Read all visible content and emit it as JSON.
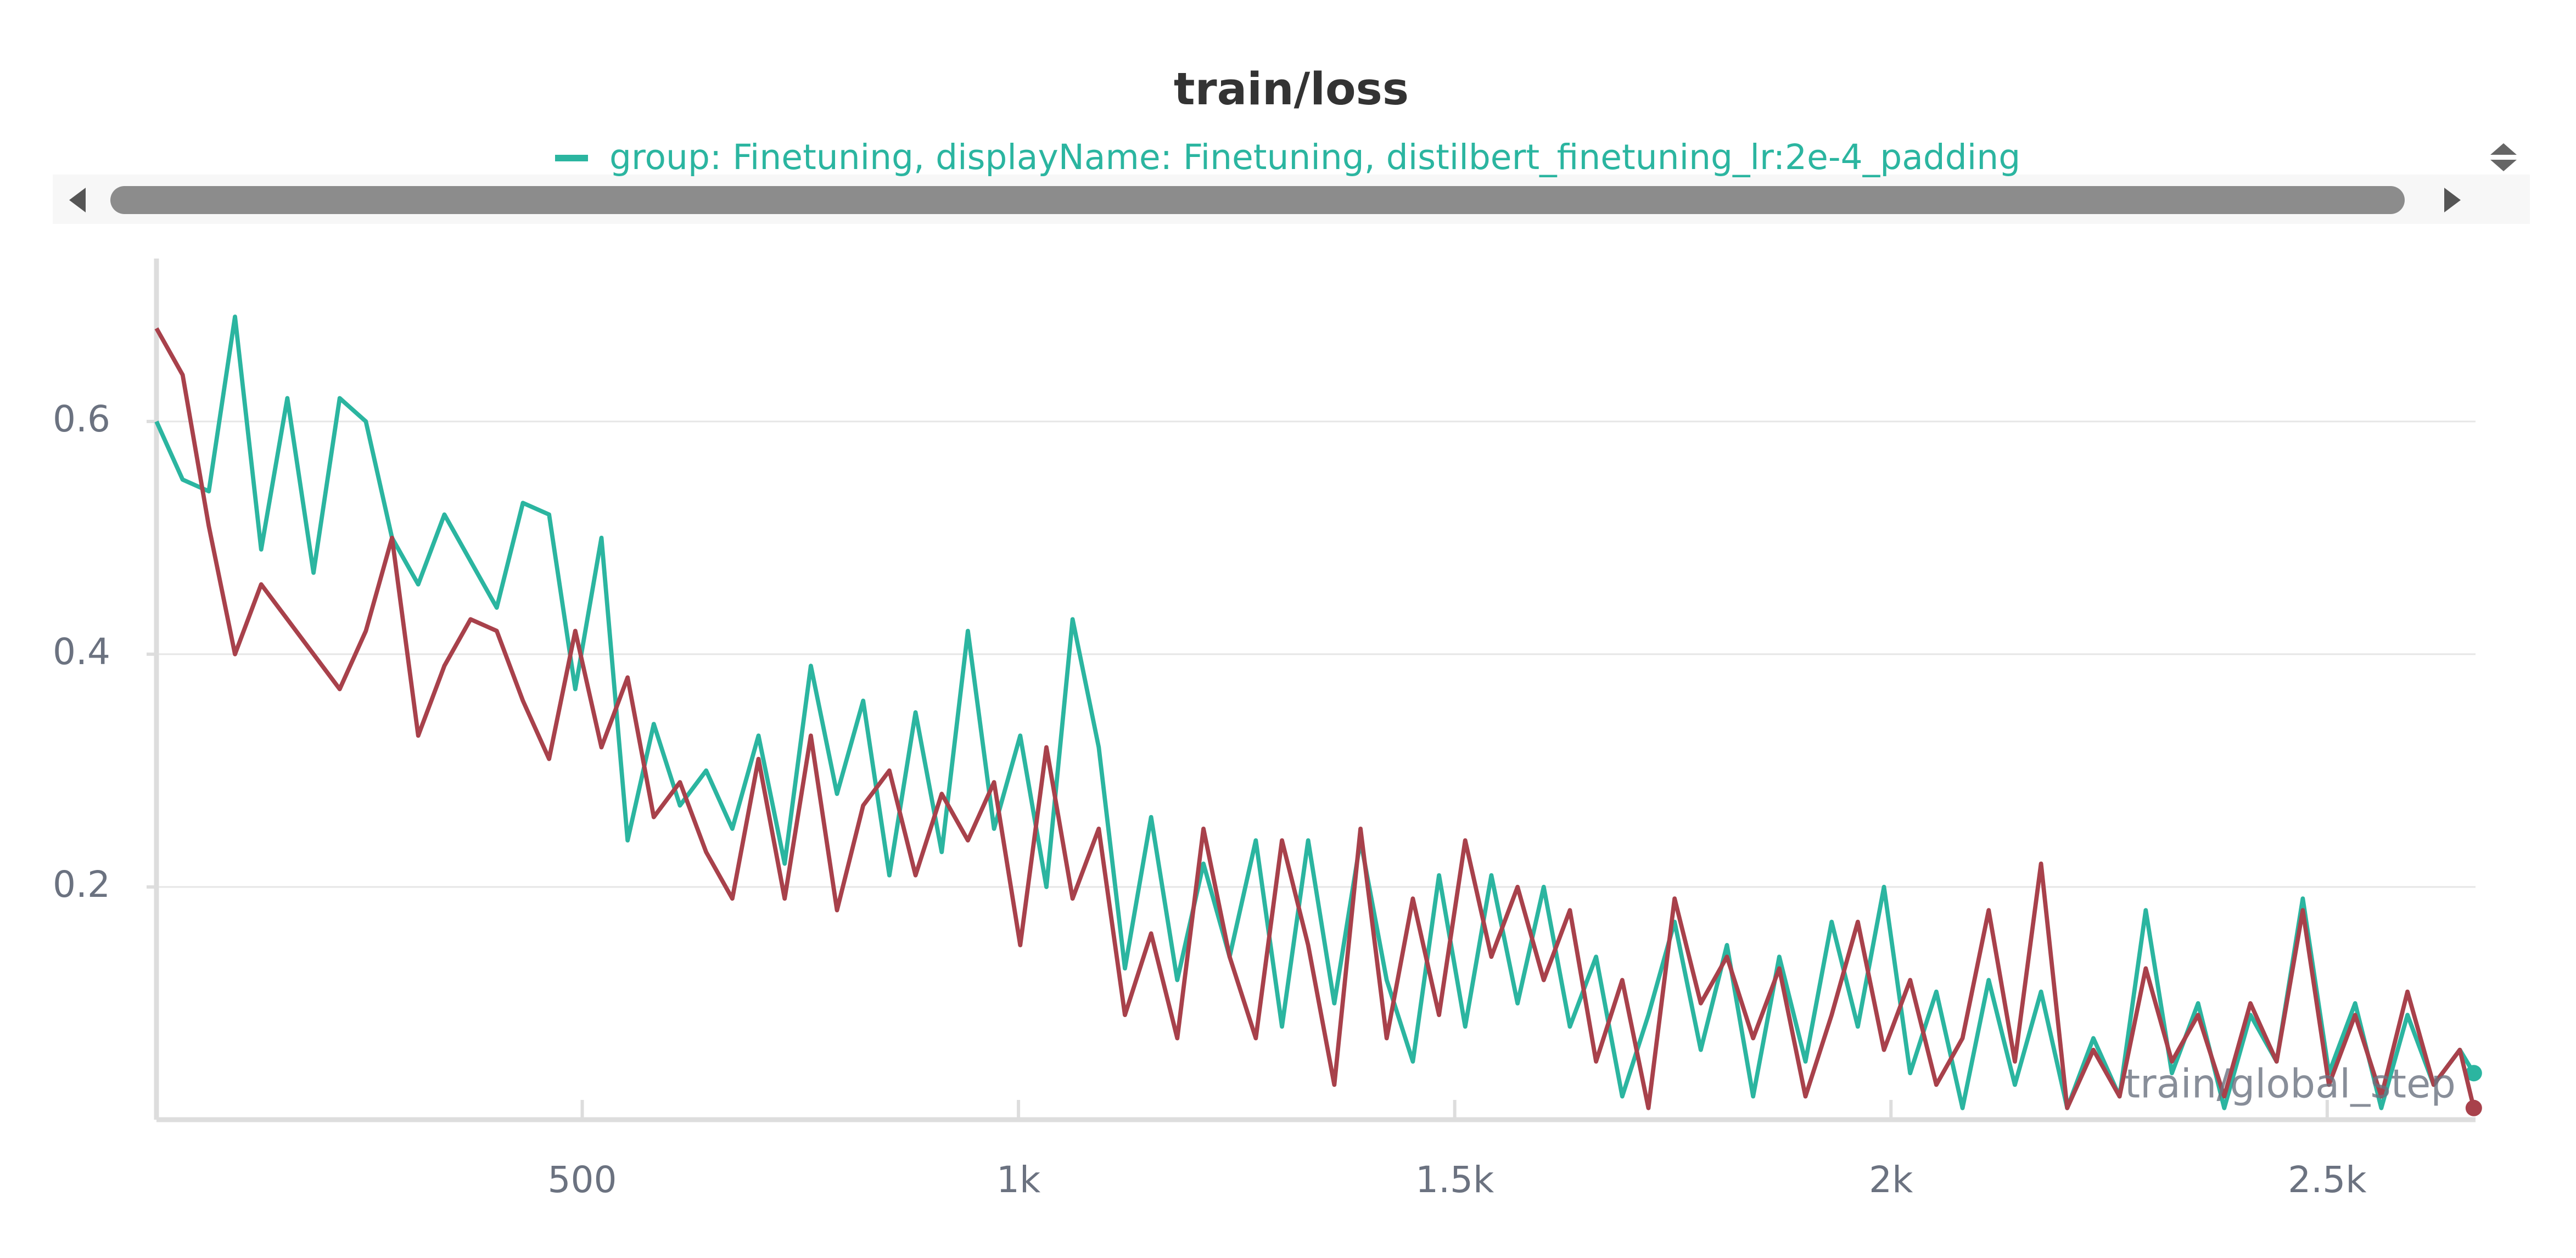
{
  "chart_data": {
    "type": "line",
    "title": "train/loss",
    "x_label": "train/global_step",
    "x": [
      12,
      42,
      72,
      102,
      132,
      162,
      192,
      222,
      252,
      282,
      312,
      342,
      372,
      402,
      432,
      462,
      492,
      522,
      552,
      582,
      612,
      642,
      672,
      702,
      732,
      762,
      792,
      822,
      852,
      882,
      912,
      942,
      972,
      1002,
      1032,
      1062,
      1092,
      1122,
      1152,
      1182,
      1212,
      1242,
      1272,
      1302,
      1332,
      1362,
      1392,
      1422,
      1452,
      1482,
      1512,
      1542,
      1572,
      1602,
      1632,
      1662,
      1692,
      1722,
      1752,
      1782,
      1812,
      1842,
      1872,
      1902,
      1932,
      1962,
      1992,
      2022,
      2052,
      2082,
      2112,
      2142,
      2172,
      2202,
      2232,
      2262,
      2292,
      2322,
      2352,
      2382,
      2412,
      2442,
      2472,
      2502,
      2532,
      2562,
      2592,
      2622,
      2652,
      2668
    ],
    "series": [
      {
        "name": "group: Finetuning, displayName: Finetuning, distilbert_finetuning_lr:2e-4_padding",
        "color": "#2bb5a0",
        "values": [
          0.6,
          0.55,
          0.54,
          0.69,
          0.49,
          0.62,
          0.47,
          0.62,
          0.6,
          0.5,
          0.46,
          0.52,
          0.48,
          0.44,
          0.53,
          0.52,
          0.37,
          0.5,
          0.24,
          0.34,
          0.27,
          0.3,
          0.25,
          0.33,
          0.22,
          0.39,
          0.28,
          0.36,
          0.21,
          0.35,
          0.23,
          0.42,
          0.25,
          0.33,
          0.2,
          0.43,
          0.32,
          0.13,
          0.26,
          0.12,
          0.22,
          0.14,
          0.24,
          0.08,
          0.24,
          0.1,
          0.24,
          0.12,
          0.05,
          0.21,
          0.08,
          0.21,
          0.1,
          0.2,
          0.08,
          0.14,
          0.02,
          0.09,
          0.17,
          0.06,
          0.15,
          0.02,
          0.14,
          0.05,
          0.17,
          0.08,
          0.2,
          0.04,
          0.11,
          0.01,
          0.12,
          0.03,
          0.11,
          0.01,
          0.07,
          0.02,
          0.18,
          0.04,
          0.1,
          0.01,
          0.09,
          0.05,
          0.19,
          0.04,
          0.1,
          0.01,
          0.09,
          0.03,
          0.06,
          0.04
        ]
      },
      {
        "color": "#a8414b",
        "values": [
          0.68,
          0.64,
          0.51,
          0.4,
          0.46,
          0.43,
          0.4,
          0.37,
          0.42,
          0.5,
          0.33,
          0.39,
          0.43,
          0.42,
          0.36,
          0.31,
          0.42,
          0.32,
          0.38,
          0.26,
          0.29,
          0.23,
          0.19,
          0.31,
          0.19,
          0.33,
          0.18,
          0.27,
          0.3,
          0.21,
          0.28,
          0.24,
          0.29,
          0.15,
          0.32,
          0.19,
          0.25,
          0.09,
          0.16,
          0.07,
          0.25,
          0.14,
          0.07,
          0.24,
          0.15,
          0.03,
          0.25,
          0.07,
          0.19,
          0.09,
          0.24,
          0.14,
          0.2,
          0.12,
          0.18,
          0.05,
          0.12,
          0.01,
          0.19,
          0.1,
          0.14,
          0.07,
          0.13,
          0.02,
          0.09,
          0.17,
          0.06,
          0.12,
          0.03,
          0.07,
          0.18,
          0.05,
          0.22,
          0.01,
          0.06,
          0.02,
          0.13,
          0.05,
          0.09,
          0.02,
          0.1,
          0.05,
          0.18,
          0.03,
          0.09,
          0.02,
          0.11,
          0.03,
          0.06,
          0.01
        ]
      }
    ],
    "xlim": [
      12,
      2670
    ],
    "ylim": [
      0,
      0.74
    ],
    "xticks": [
      {
        "value": 500,
        "label": "500"
      },
      {
        "value": 1000,
        "label": "1k"
      },
      {
        "value": 1500,
        "label": "1.5k"
      },
      {
        "value": 2000,
        "label": "2k"
      },
      {
        "value": 2500,
        "label": "2.5k"
      }
    ],
    "yticks": [
      0.2,
      0.4,
      0.6
    ],
    "grid": true
  }
}
